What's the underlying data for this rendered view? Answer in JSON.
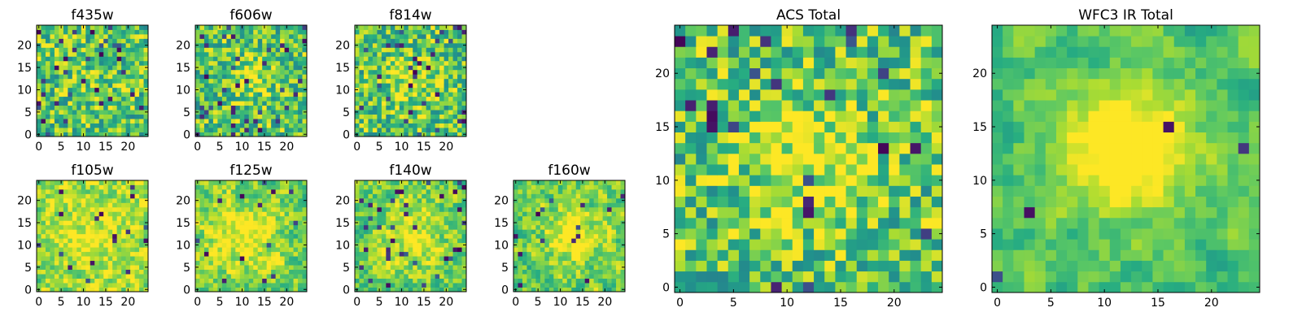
{
  "figure": {
    "background": "#ffffff",
    "colormap": "viridis"
  },
  "chart_data": [
    {
      "name": "f435w",
      "type": "heatmap",
      "title": "f435w",
      "grid_size": 25,
      "xticks": [
        0,
        5,
        10,
        15,
        20
      ],
      "yticks": [
        0,
        5,
        10,
        15,
        20
      ],
      "seed": 11,
      "low_threshold": 0.05,
      "dark_fraction": 0.06,
      "blob": {
        "cx": 12,
        "cy": 12,
        "r": 5,
        "strength": 0.05
      },
      "smooth": 0,
      "bright_bias": 0.0
    },
    {
      "name": "f606w",
      "type": "heatmap",
      "title": "f606w",
      "grid_size": 25,
      "xticks": [
        0,
        5,
        10,
        15,
        20
      ],
      "yticks": [
        0,
        5,
        10,
        15,
        20
      ],
      "seed": 23,
      "dark_fraction": 0.05,
      "blob": {
        "cx": 12,
        "cy": 13,
        "r": 3,
        "strength": 0.25
      },
      "smooth": 0,
      "bright_bias": 0.0
    },
    {
      "name": "f814w",
      "type": "heatmap",
      "title": "f814w",
      "grid_size": 25,
      "xticks": [
        0,
        5,
        10,
        15,
        20
      ],
      "yticks": [
        0,
        5,
        10,
        15,
        20
      ],
      "seed": 37,
      "dark_fraction": 0.05,
      "blob": {
        "cx": 13,
        "cy": 12,
        "r": 4,
        "strength": 0.2
      },
      "smooth": 0,
      "bright_bias": 0.0
    },
    {
      "name": "f105w",
      "type": "heatmap",
      "title": "f105w",
      "grid_size": 25,
      "xticks": [
        0,
        5,
        10,
        15,
        20
      ],
      "yticks": [
        0,
        5,
        10,
        15,
        20
      ],
      "seed": 41,
      "dark_fraction": 0.02,
      "blob": {
        "cx": 12,
        "cy": 12,
        "r": 5,
        "strength": 0.15
      },
      "smooth": 1,
      "bright_bias": 0.12
    },
    {
      "name": "f125w",
      "type": "heatmap",
      "title": "f125w",
      "grid_size": 25,
      "xticks": [
        0,
        5,
        10,
        15,
        20
      ],
      "yticks": [
        0,
        5,
        10,
        15,
        20
      ],
      "seed": 53,
      "dark_fraction": 0.03,
      "blob": {
        "cx": 11,
        "cy": 12,
        "r": 5,
        "strength": 0.2
      },
      "smooth": 1,
      "bright_bias": 0.08
    },
    {
      "name": "f140w",
      "type": "heatmap",
      "title": "f140w",
      "grid_size": 25,
      "xticks": [
        0,
        5,
        10,
        15,
        20
      ],
      "yticks": [
        0,
        5,
        10,
        15,
        20
      ],
      "seed": 67,
      "dark_fraction": 0.04,
      "blob": {
        "cx": 12,
        "cy": 12,
        "r": 5,
        "strength": 0.2
      },
      "smooth": 1,
      "bright_bias": 0.05
    },
    {
      "name": "f160w",
      "type": "heatmap",
      "title": "f160w",
      "grid_size": 25,
      "xticks": [
        0,
        5,
        10,
        15,
        20
      ],
      "yticks": [
        0,
        5,
        10,
        15,
        20
      ],
      "seed": 79,
      "dark_fraction": 0.03,
      "blob": {
        "cx": 13,
        "cy": 12,
        "r": 4,
        "strength": 0.3
      },
      "smooth": 1,
      "bright_bias": 0.05
    },
    {
      "name": "acs-total",
      "type": "heatmap",
      "title": "ACS Total",
      "grid_size": 25,
      "xticks": [
        0,
        5,
        10,
        15,
        20
      ],
      "yticks": [
        0,
        5,
        10,
        15,
        20
      ],
      "seed": 97,
      "dark_fraction": 0.04,
      "blob": {
        "cx": 12,
        "cy": 12,
        "r": 4,
        "strength": 0.25
      },
      "smooth": 0,
      "bright_bias": 0.0
    },
    {
      "name": "wfc3-ir-total",
      "type": "heatmap",
      "title": "WFC3 IR Total",
      "grid_size": 25,
      "xticks": [
        0,
        5,
        10,
        15,
        20
      ],
      "yticks": [
        0,
        5,
        10,
        15,
        20
      ],
      "seed": 113,
      "dark_fraction": 0.01,
      "blob": {
        "cx": 12,
        "cy": 13,
        "r": 4,
        "strength": 0.45
      },
      "smooth": 2,
      "bright_bias": 0.0
    }
  ]
}
